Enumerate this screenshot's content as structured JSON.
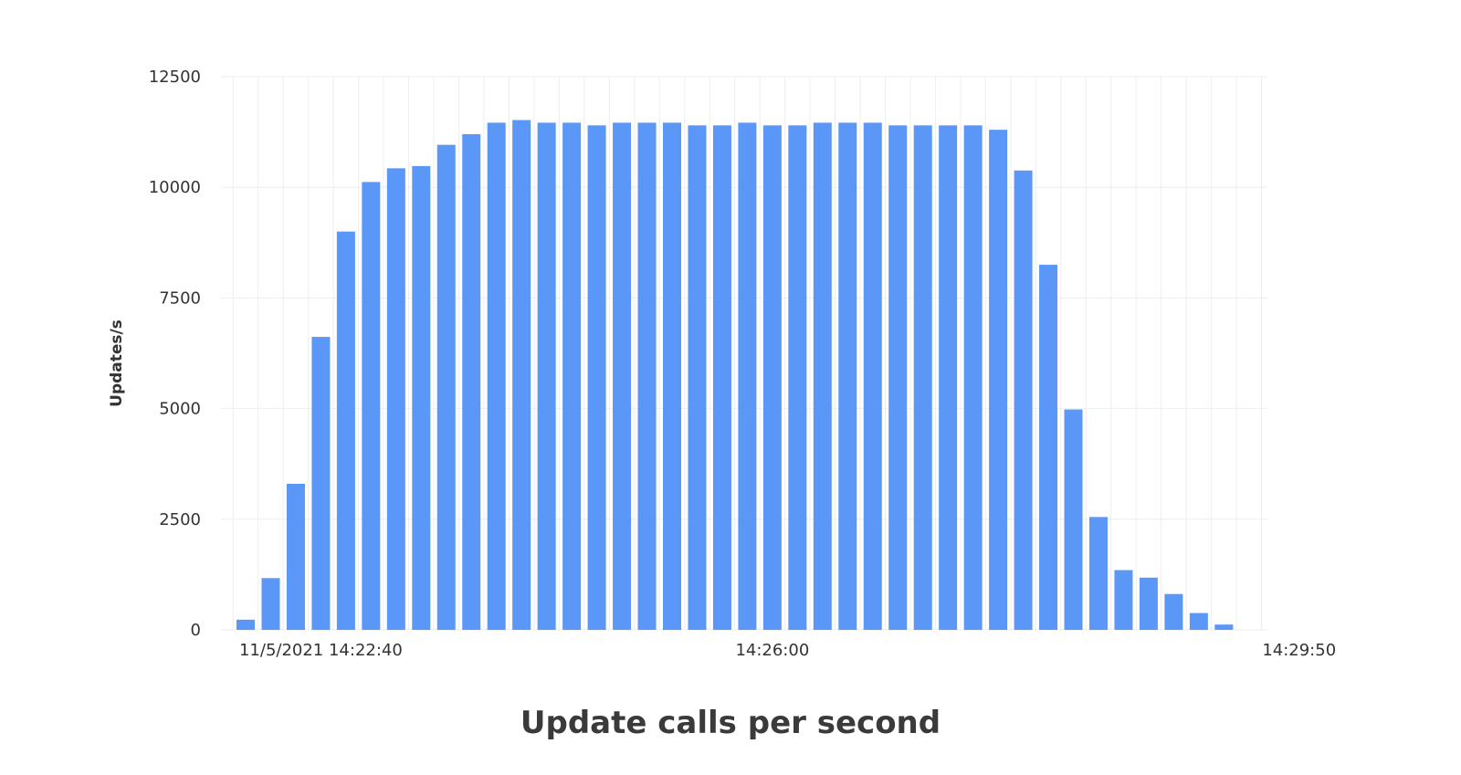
{
  "caption": "Update calls per second",
  "chart_data": {
    "type": "bar",
    "title": "",
    "xlabel": "",
    "ylabel": "Updates/s",
    "ylim": [
      0,
      12500
    ],
    "yticks": [
      "0",
      "2500",
      "5000",
      "7500",
      "10000",
      "12500"
    ],
    "xticks": [
      {
        "index": 3,
        "label": "11/5/2021 14:22:40"
      },
      {
        "index": 21,
        "label": "14:26:00"
      },
      {
        "index": 42,
        "label": "14:29:50"
      }
    ],
    "grid": true,
    "bar_color": "#5b97f7",
    "grid_color": "#eeeeee",
    "values": [
      230,
      1170,
      3300,
      6620,
      9000,
      10120,
      10430,
      10480,
      10960,
      11200,
      11460,
      11520,
      11460,
      11460,
      11400,
      11460,
      11460,
      11460,
      11400,
      11400,
      11460,
      11400,
      11400,
      11460,
      11460,
      11460,
      11400,
      11400,
      11400,
      11400,
      11300,
      10380,
      8250,
      4980,
      2550,
      1350,
      1180,
      810,
      380,
      120,
      null,
      null,
      null
    ]
  }
}
